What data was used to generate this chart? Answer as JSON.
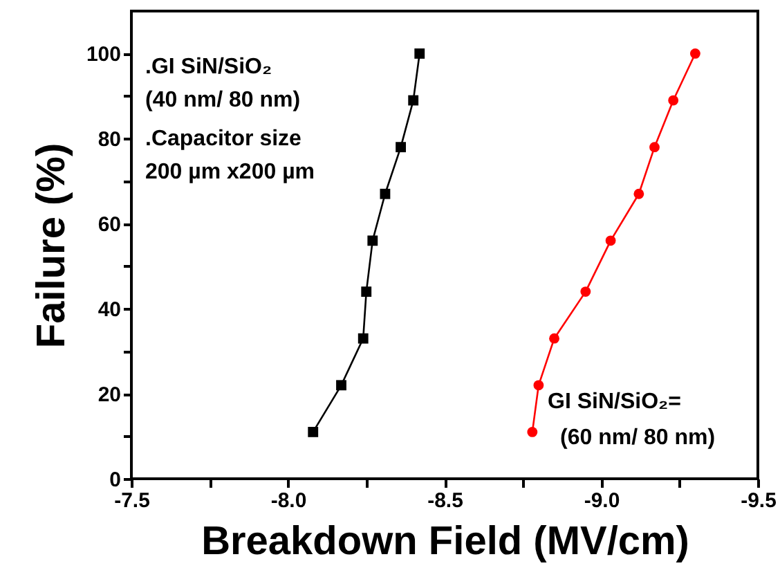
{
  "chart_data": {
    "type": "line",
    "xlabel": "Breakdown Field (MV/cm)",
    "ylabel": "Failure (%)",
    "xlim": [
      -7.5,
      -9.5
    ],
    "xticks": [
      -7.5,
      {
        "value": -7.75,
        "label": null
      },
      "-8.0",
      {
        "value": -8.25,
        "label": null
      },
      -8.5,
      {
        "value": -8.75,
        "label": null
      },
      "-9.0",
      {
        "value": -9.25,
        "label": null
      },
      -9.5
    ],
    "ylim": [
      0,
      110
    ],
    "yticks": [
      0,
      {
        "value": 10,
        "label": null
      },
      20,
      {
        "value": 30,
        "label": null
      },
      40,
      {
        "value": 50,
        "label": null
      },
      60,
      {
        "value": 70,
        "label": null
      },
      80,
      {
        "value": 90,
        "label": null
      },
      100
    ],
    "grid": false,
    "line_style": "solid",
    "series": [
      {
        "color": "#000000",
        "marker": "square",
        "x": [
          -8.08,
          -8.17,
          -8.24,
          -8.25,
          -8.27,
          -8.31,
          -8.36,
          -8.4,
          -8.42
        ],
        "values": [
          11,
          22,
          33,
          44,
          56,
          67,
          78,
          89,
          100
        ]
      },
      {
        "color": "#ff0000",
        "marker": "circle",
        "x": [
          -8.78,
          -8.8,
          -8.85,
          -8.95,
          -9.03,
          -9.12,
          -9.17,
          -9.23,
          -9.3
        ],
        "values": [
          11,
          22,
          33,
          44,
          56,
          67,
          78,
          89,
          100
        ]
      }
    ],
    "annotations": [
      ".GI SiN/SiO₂",
      "(40 nm/ 80 nm)",
      ".Capacitor size",
      "200 µm x200 µm",
      "GI SiN/SiO₂=",
      "(60 nm/ 80 nm)"
    ]
  }
}
